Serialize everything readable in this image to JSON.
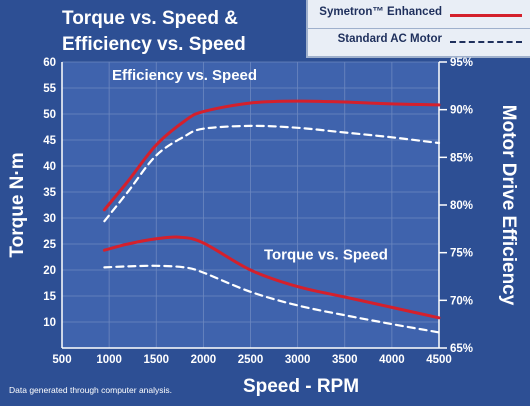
{
  "title_line1": "Torque vs. Speed &",
  "title_line2": "Efficiency vs. Speed",
  "footnote": "Data generated through computer analysis.",
  "legend": [
    {
      "label": "Symetron™ Enhanced",
      "color": "#d4202c",
      "style": "solid"
    },
    {
      "label": "Standard AC Motor",
      "color": "#ffffff",
      "style": "dashed"
    }
  ],
  "chart_data": {
    "type": "line",
    "xlabel": "Speed - RPM",
    "ylabel_left": "Torque N·m",
    "ylabel_right": "Motor Drive Efficiency",
    "xlim": [
      500,
      4500
    ],
    "ylim_left": [
      5,
      60
    ],
    "ylim_right": [
      65,
      95
    ],
    "x_ticks": [
      500,
      1000,
      1500,
      2000,
      2500,
      3000,
      3500,
      4000,
      4500
    ],
    "y_ticks_left": [
      10,
      15,
      20,
      25,
      30,
      35,
      40,
      45,
      50,
      55,
      60
    ],
    "y_ticks_right": [
      "65%",
      "70%",
      "75%",
      "80%",
      "85%",
      "90%",
      "95%"
    ],
    "y_ticks_right_values": [
      65,
      70,
      75,
      80,
      85,
      90,
      95
    ],
    "grid": true,
    "annotations": [
      {
        "text": "Efficiency vs. Speed",
        "x": 1800,
        "y": 56.5
      },
      {
        "text": "Torque vs. Speed",
        "x": 3300,
        "y": 22
      }
    ],
    "series": [
      {
        "name": "Symetron™ Enhanced — Efficiency",
        "axis": "right",
        "color": "#d4202c",
        "style": "solid",
        "x": [
          950,
          1200,
          1500,
          1800,
          2000,
          2500,
          3000,
          3500,
          4000,
          4500
        ],
        "y": [
          79.5,
          82.5,
          86.3,
          88.8,
          89.8,
          90.7,
          90.9,
          90.8,
          90.6,
          90.5
        ]
      },
      {
        "name": "Standard AC Motor — Efficiency",
        "axis": "right",
        "color": "#ffffff",
        "style": "dashed",
        "x": [
          950,
          1200,
          1500,
          1800,
          2000,
          2500,
          3000,
          3500,
          4000,
          4500
        ],
        "y": [
          78.3,
          81.4,
          85.2,
          87.2,
          88.0,
          88.3,
          88.1,
          87.6,
          87.1,
          86.5
        ]
      },
      {
        "name": "Symetron™ Enhanced — Torque",
        "axis": "left",
        "color": "#d4202c",
        "style": "solid",
        "x": [
          950,
          1200,
          1500,
          1750,
          2000,
          2500,
          3000,
          3500,
          4000,
          4500
        ],
        "y": [
          23.8,
          25.0,
          26.0,
          26.3,
          25.2,
          20.0,
          16.8,
          14.8,
          12.8,
          10.8
        ]
      },
      {
        "name": "Standard AC Motor — Torque",
        "axis": "left",
        "color": "#ffffff",
        "style": "dashed",
        "x": [
          950,
          1200,
          1500,
          1800,
          2000,
          2500,
          3000,
          3500,
          4000,
          4500
        ],
        "y": [
          20.5,
          20.7,
          20.8,
          20.5,
          19.5,
          15.8,
          13.2,
          11.3,
          9.6,
          8.0
        ]
      }
    ]
  }
}
